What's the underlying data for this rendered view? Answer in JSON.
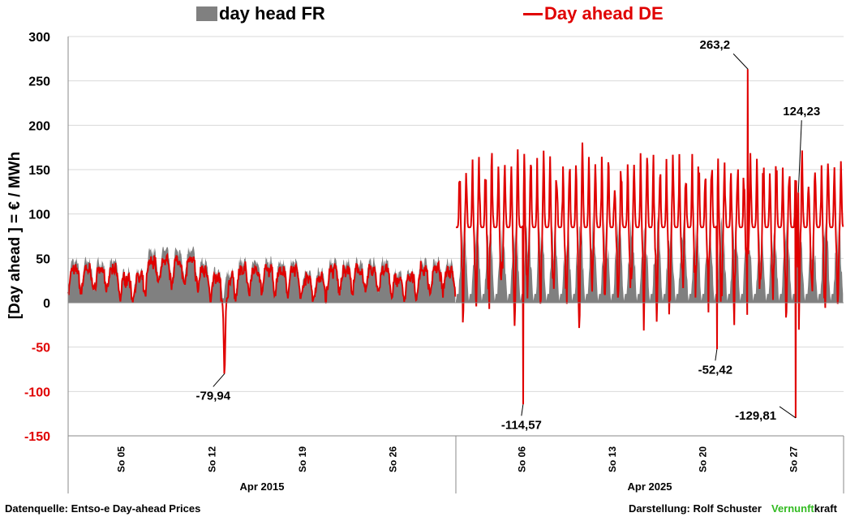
{
  "legend": {
    "fr_label": "day head FR",
    "de_label": "Day ahead DE"
  },
  "footer": {
    "source": "Datenquelle: Entso-e  Day-ahead Prices",
    "credit": "Darstellung:  Rolf Schuster",
    "brand_green": "Vernunft",
    "brand_black": "kraft"
  },
  "colors": {
    "fr_fill": "#808080",
    "de_line": "#e00000",
    "axis_negative": "#e00000",
    "grid": "#d9d9d9",
    "brand_green": "#33bb22"
  },
  "chart_data": {
    "type": "area",
    "ylabel": "[Day ahead ]  = € / MWh",
    "ylim": [
      -150,
      300
    ],
    "yticks": [
      300,
      250,
      200,
      150,
      100,
      50,
      0,
      -50,
      -100,
      -150
    ],
    "grid": true,
    "legend_position": "top",
    "groups": [
      {
        "label": "Apr 2015",
        "ticks": [
          "So 05",
          "So 12",
          "So 19",
          "So 26"
        ]
      },
      {
        "label": "Apr 2025",
        "ticks": [
          "So 06",
          "So 13",
          "So 20",
          "So 27"
        ]
      }
    ],
    "series": [
      {
        "name": "day head FR",
        "style": "area"
      },
      {
        "name": "Day ahead DE",
        "style": "line"
      }
    ],
    "annotations": [
      {
        "text": "-79,94",
        "group": "Apr 2015",
        "day": 13.1,
        "value": -79.94
      },
      {
        "text": "-114,57",
        "group": "Apr 2025",
        "day": 6.2,
        "value": -114.57
      },
      {
        "text": "263,2",
        "group": "Apr 2025",
        "day": 23.6,
        "value": 263.2
      },
      {
        "text": "-52,42",
        "group": "Apr 2025",
        "day": 21.2,
        "value": -52.42
      },
      {
        "text": "124,23",
        "group": "Apr 2025",
        "day": 27.5,
        "value": 124.23
      },
      {
        "text": "-129,81",
        "group": "Apr 2025",
        "day": 27.3,
        "value": -129.81
      }
    ]
  }
}
